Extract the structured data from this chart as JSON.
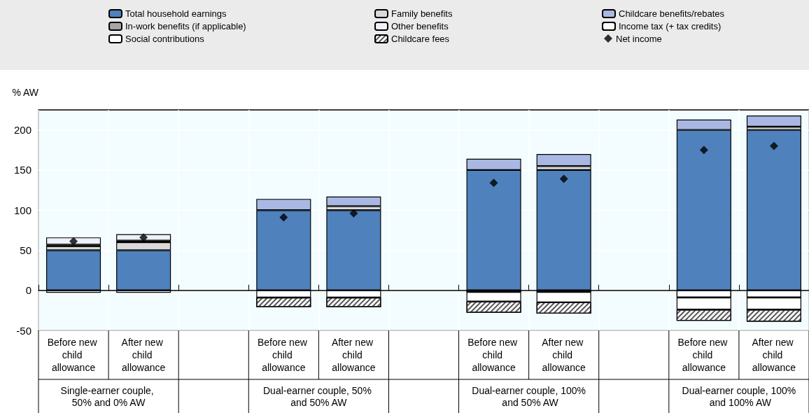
{
  "chart_data": {
    "type": "bar",
    "stacked": true,
    "ylabel": "% AW",
    "categories": [
      "Before new child allowance",
      "After new child allowance",
      null,
      "Before new child allowance",
      "After new child allowance",
      null,
      "Before new child allowance",
      "After new child allowance",
      null,
      "Before new child allowance",
      "After new child allowance"
    ],
    "annotations": [
      "Single-earner couple, 50% and 0% AW",
      "Dual-earner couple, 50% and 50% AW",
      "Dual-earner couple, 100% and 50% AW",
      "Dual-earner couple, 100% and 100% AW"
    ],
    "ylim": [
      -50,
      225
    ],
    "yticks": [
      -50,
      0,
      50,
      100,
      150,
      200
    ],
    "grid": true,
    "legend": "top",
    "series": [
      {
        "name": "Total household earnings",
        "color": "#4f81bd",
        "values": [
          50,
          50,
          null,
          100,
          100,
          null,
          150,
          150,
          null,
          200,
          200
        ]
      },
      {
        "name": "Family benefits",
        "color": "#d9d9d9",
        "values": [
          5,
          10,
          null,
          null,
          5,
          null,
          null,
          5,
          null,
          null,
          4
        ]
      },
      {
        "name": "In-work benefits (if applicable)",
        "color": "#a6a6a6",
        "values": [
          2,
          2,
          null,
          null,
          null,
          null,
          null,
          null,
          null,
          null,
          null
        ]
      },
      {
        "name": "Other benefits",
        "color": "#eef0fa",
        "values": [
          9,
          8,
          null,
          null,
          null,
          null,
          null,
          null,
          null,
          null,
          null
        ]
      },
      {
        "name": "Childcare benefits/rebates",
        "color": "#a9b8e3",
        "values": [
          null,
          null,
          null,
          14,
          12,
          null,
          14,
          15,
          null,
          13,
          14
        ]
      },
      {
        "name": "Income tax (+ tax credits)",
        "color": "#ffffff",
        "values": [
          null,
          null,
          null,
          null,
          null,
          null,
          -2,
          -2,
          null,
          -9,
          -9
        ]
      },
      {
        "name": "Social contributions",
        "color": "#ffffff",
        "values": [
          -3,
          -3,
          null,
          -9,
          -9,
          null,
          -12,
          -13,
          null,
          -15,
          -15
        ]
      },
      {
        "name": "Childcare fees",
        "color": "#ffffff",
        "values": [
          null,
          null,
          null,
          -12,
          -12,
          null,
          -14,
          -14,
          null,
          -14,
          -15
        ]
      },
      {
        "name": "Net income",
        "type": "scatter",
        "color": "#000000",
        "values": [
          61,
          66,
          null,
          91,
          96,
          null,
          134,
          139,
          null,
          175,
          180
        ]
      }
    ],
    "marker": "diamond"
  }
}
